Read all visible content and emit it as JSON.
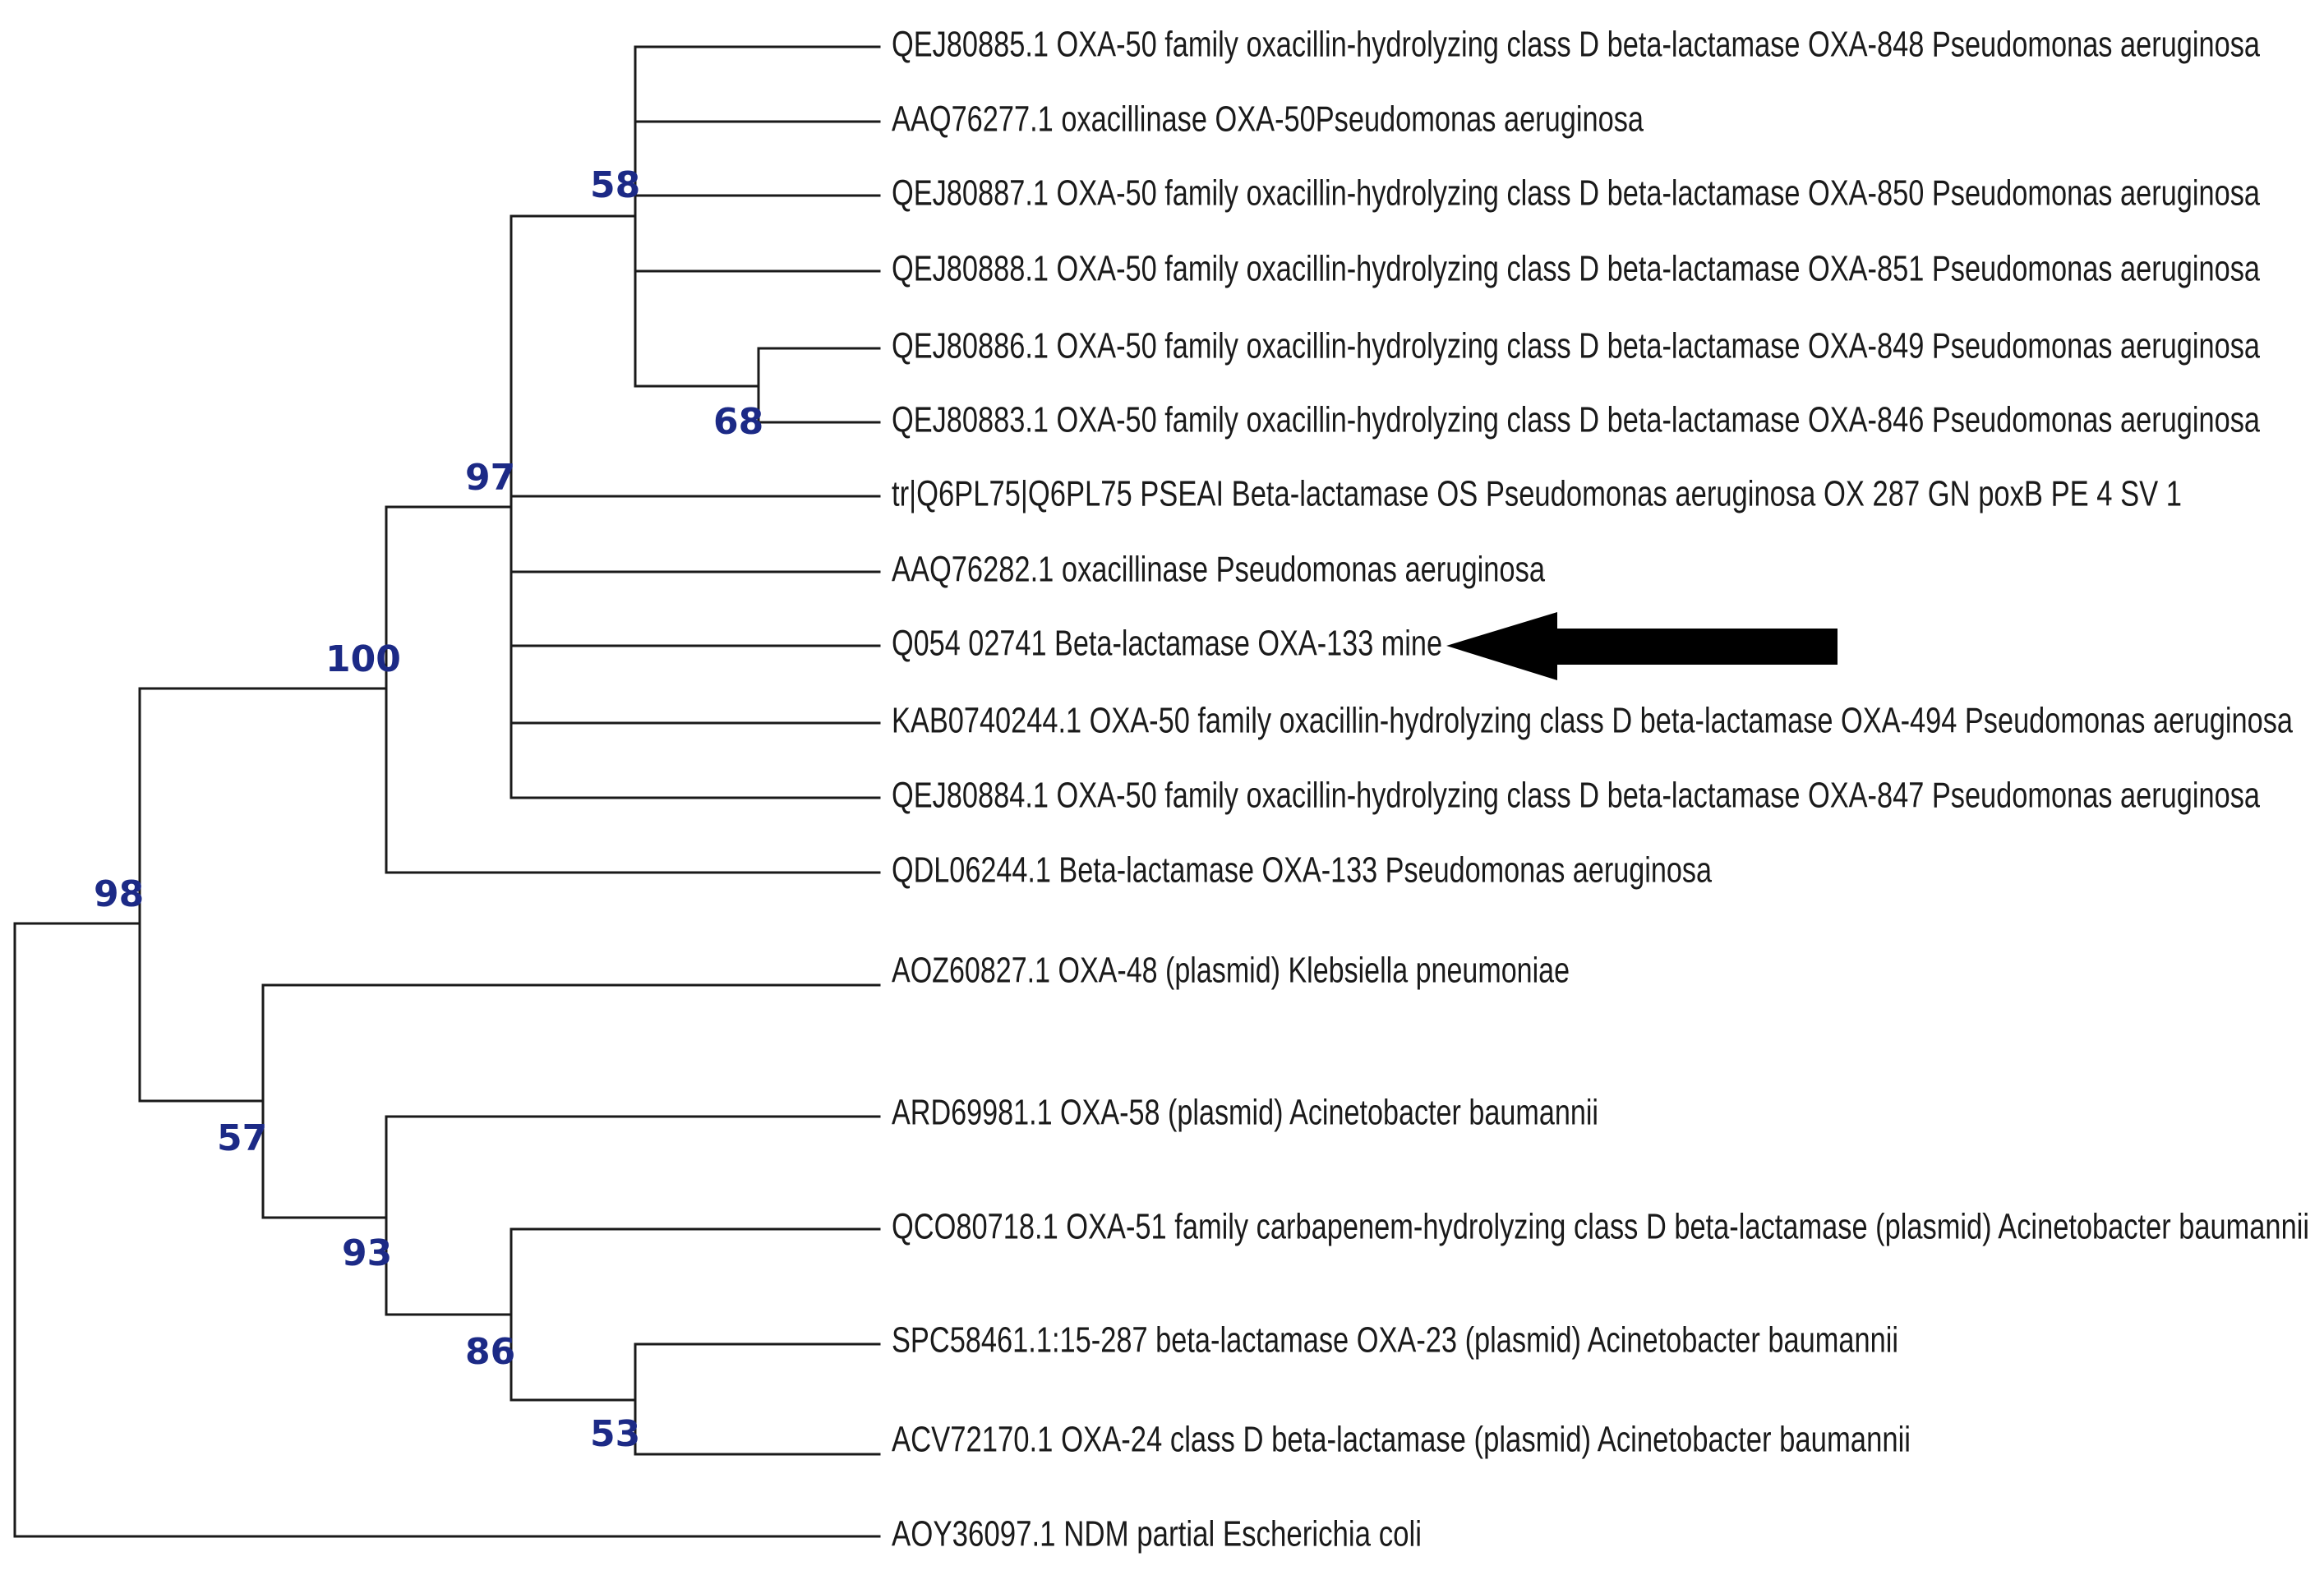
{
  "figure": {
    "type": "phylogenetic-tree",
    "highlight_arrow_target": "Q054 02741 Beta-lactamase OXA-133 mine",
    "colors": {
      "branch": "#1a1a1a",
      "label": "#1a1a1a",
      "support": "#1c2a86",
      "arrow": "#000000",
      "background": "#ffffff"
    }
  },
  "taxa": [
    "QEJ80885.1 OXA-50 family oxacillin-hydrolyzing class D beta-lactamase OXA-848 Pseudomonas aeruginosa",
    "AAQ76277.1 oxacillinase OXA-50Pseudomonas aeruginosa",
    "QEJ80887.1 OXA-50 family oxacillin-hydrolyzing class D beta-lactamase OXA-850 Pseudomonas aeruginosa",
    "QEJ80888.1 OXA-50 family oxacillin-hydrolyzing class D beta-lactamase OXA-851 Pseudomonas aeruginosa",
    "QEJ80886.1 OXA-50 family oxacillin-hydrolyzing class D beta-lactamase OXA-849 Pseudomonas aeruginosa",
    "QEJ80883.1 OXA-50 family oxacillin-hydrolyzing class D beta-lactamase OXA-846 Pseudomonas aeruginosa",
    "tr|Q6PL75|Q6PL75 PSEAI Beta-lactamase OS Pseudomonas aeruginosa OX 287 GN poxB PE 4 SV 1",
    "AAQ76282.1 oxacillinase Pseudomonas aeruginosa",
    "Q054 02741 Beta-lactamase OXA-133 mine",
    "KAB0740244.1 OXA-50 family oxacillin-hydrolyzing class D beta-lactamase OXA-494 Pseudomonas aeruginosa",
    "QEJ80884.1 OXA-50 family oxacillin-hydrolyzing class D beta-lactamase OXA-847 Pseudomonas aeruginosa",
    "QDL06244.1 Beta-lactamase OXA-133 Pseudomonas aeruginosa",
    "AOZ60827.1 OXA-48 (plasmid) Klebsiella pneumoniae",
    "ARD69981.1 OXA-58 (plasmid) Acinetobacter baumannii",
    "QCO80718.1 OXA-51 family carbapenem-hydrolyzing class D beta-lactamase (plasmid) Acinetobacter baumannii",
    "SPC58461.1:15-287 beta-lactamase OXA-23 (plasmid) Acinetobacter baumannii",
    "ACV72170.1 OXA-24 class D beta-lactamase (plasmid) Acinetobacter baumannii",
    "AOY36097.1 NDM partial Escherichia coli"
  ],
  "support_values": {
    "node_58": "58",
    "node_68": "68",
    "node_97": "97",
    "node_100": "100",
    "node_98": "98",
    "node_57": "57",
    "node_93": "93",
    "node_86": "86",
    "node_53": "53"
  }
}
